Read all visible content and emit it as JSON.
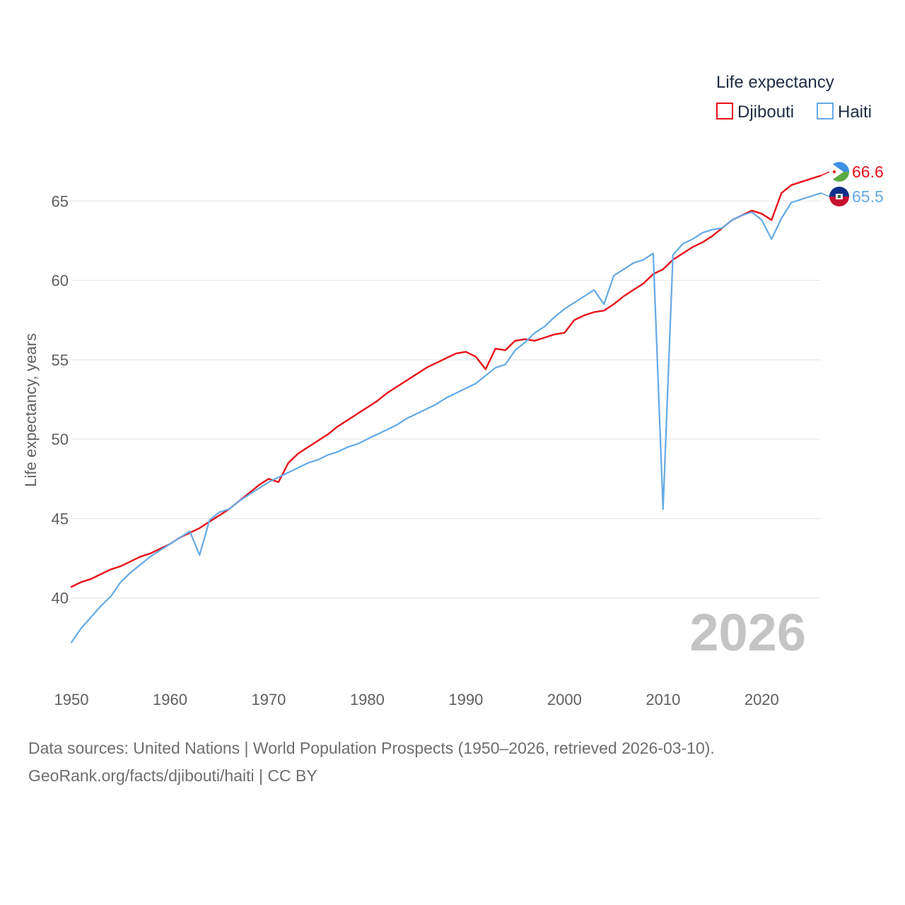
{
  "chart_data": {
    "type": "line",
    "legend_title": "Life expectancy",
    "ylabel": "Life expectancy, years",
    "xlabel": "",
    "xlim": [
      1950,
      2026
    ],
    "ylim": [
      35,
      70
    ],
    "x_ticks": [
      1950,
      1960,
      1970,
      1980,
      1990,
      2000,
      2010,
      2020
    ],
    "y_ticks": [
      40,
      45,
      50,
      55,
      60,
      65
    ],
    "legend_position": "top-right",
    "current_year": "2026",
    "years": [
      1950,
      1951,
      1952,
      1953,
      1954,
      1955,
      1956,
      1957,
      1958,
      1959,
      1960,
      1961,
      1962,
      1963,
      1964,
      1965,
      1966,
      1967,
      1968,
      1969,
      1970,
      1971,
      1972,
      1973,
      1974,
      1975,
      1976,
      1977,
      1978,
      1979,
      1980,
      1981,
      1982,
      1983,
      1984,
      1985,
      1986,
      1987,
      1988,
      1989,
      1990,
      1991,
      1992,
      1993,
      1994,
      1995,
      1996,
      1997,
      1998,
      1999,
      2000,
      2001,
      2002,
      2003,
      2004,
      2005,
      2006,
      2007,
      2008,
      2009,
      2010,
      2011,
      2012,
      2013,
      2014,
      2015,
      2016,
      2017,
      2018,
      2019,
      2020,
      2021,
      2022,
      2023,
      2024,
      2025,
      2026
    ],
    "series": [
      {
        "name": "Djibouti",
        "color": "#e8101b",
        "end_label": "66.6",
        "values": [
          40.7,
          41.0,
          41.2,
          41.5,
          41.8,
          42.0,
          42.3,
          42.6,
          42.8,
          43.1,
          43.4,
          43.8,
          44.1,
          44.4,
          44.8,
          45.2,
          45.6,
          46.1,
          46.6,
          47.1,
          47.5,
          47.3,
          48.5,
          49.1,
          49.5,
          49.9,
          50.3,
          50.8,
          51.2,
          51.6,
          52.0,
          52.4,
          52.9,
          53.3,
          53.7,
          54.1,
          54.5,
          54.8,
          55.1,
          55.4,
          55.5,
          55.2,
          54.4,
          55.7,
          55.6,
          56.2,
          56.3,
          56.2,
          56.4,
          56.6,
          56.7,
          57.5,
          57.8,
          58.0,
          58.1,
          58.5,
          59.0,
          59.4,
          59.8,
          60.4,
          60.7,
          61.3,
          61.7,
          62.1,
          62.4,
          62.8,
          63.3,
          63.8,
          64.1,
          64.4,
          64.2,
          63.8,
          65.5,
          66.0,
          66.2,
          66.4,
          66.6
        ]
      },
      {
        "name": "Haiti",
        "color": "#64a9e6",
        "end_label": "65.5",
        "values": [
          37.2,
          38.1,
          38.8,
          39.5,
          40.1,
          41.0,
          41.6,
          42.1,
          42.6,
          43.0,
          43.4,
          43.8,
          44.2,
          42.7,
          44.9,
          45.4,
          45.6,
          46.1,
          46.5,
          46.9,
          47.3,
          47.6,
          47.9,
          48.2,
          48.5,
          48.7,
          49.0,
          49.2,
          49.5,
          49.7,
          50.0,
          50.3,
          50.6,
          50.9,
          51.3,
          51.6,
          51.9,
          52.2,
          52.6,
          52.9,
          53.2,
          53.5,
          54.0,
          54.5,
          54.7,
          55.6,
          56.1,
          56.7,
          57.1,
          57.7,
          58.2,
          58.6,
          59.0,
          59.4,
          58.5,
          60.3,
          60.7,
          61.1,
          61.3,
          61.7,
          45.6,
          61.6,
          62.3,
          62.6,
          63.0,
          63.2,
          63.3,
          63.8,
          64.1,
          64.3,
          63.8,
          62.6,
          63.9,
          64.9,
          65.1,
          65.3,
          65.5
        ]
      }
    ]
  },
  "source_line_1": "Data sources: United Nations | World Population Prospects (1950–2026, retrieved 2026-03-10).",
  "source_line_2": "GeoRank.org/facts/djibouti/haiti | CC BY"
}
